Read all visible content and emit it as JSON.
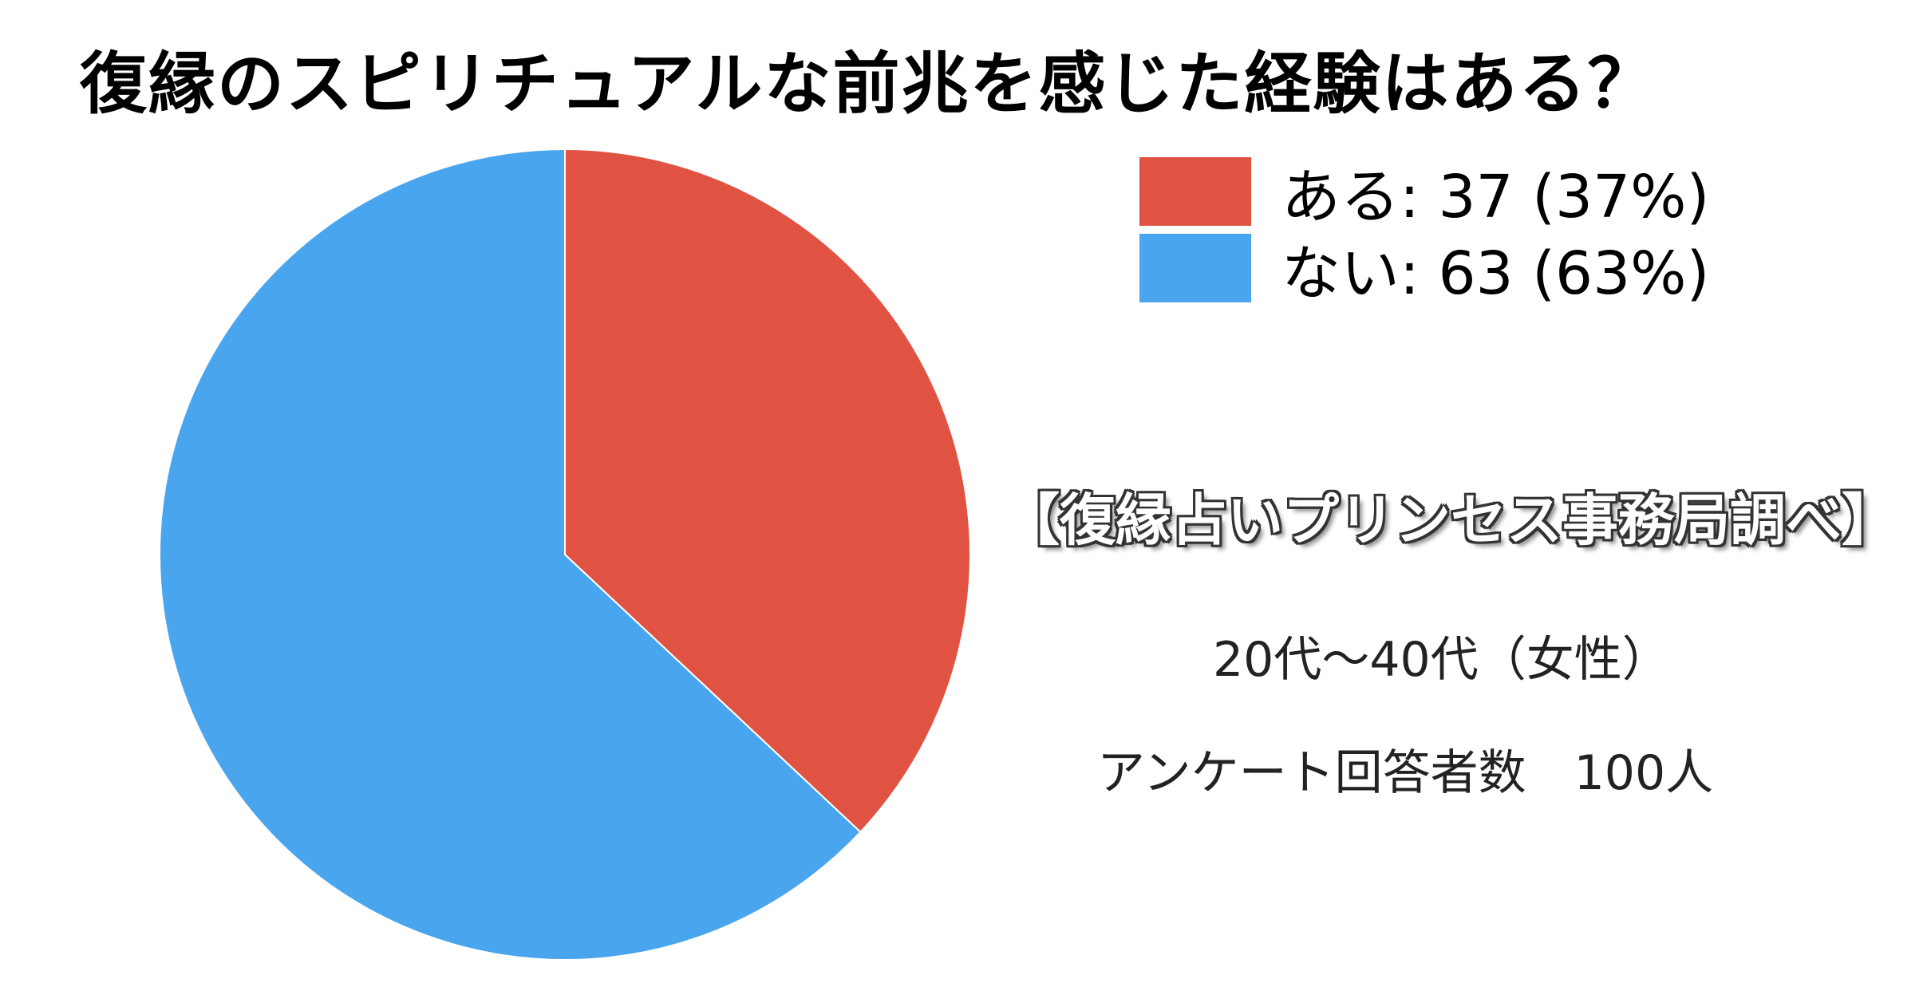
{
  "chart_data": {
    "type": "pie",
    "title": "復縁のスピリチュアルな前兆を感じた経験はある？",
    "slices": [
      {
        "label": "ある: 37 (37%)",
        "name": "ある",
        "value": 37,
        "color": "#E05343"
      },
      {
        "label": "ない: 63 (63%)",
        "name": "ない",
        "value": 63,
        "color": "#48A5EE"
      }
    ],
    "legend_position": "top-right"
  },
  "notes": {
    "source": "【復縁占いプリンセス事務局調べ】",
    "demographic": "20代～40代（女性）",
    "respondents": "アンケート回答者数　100人"
  }
}
